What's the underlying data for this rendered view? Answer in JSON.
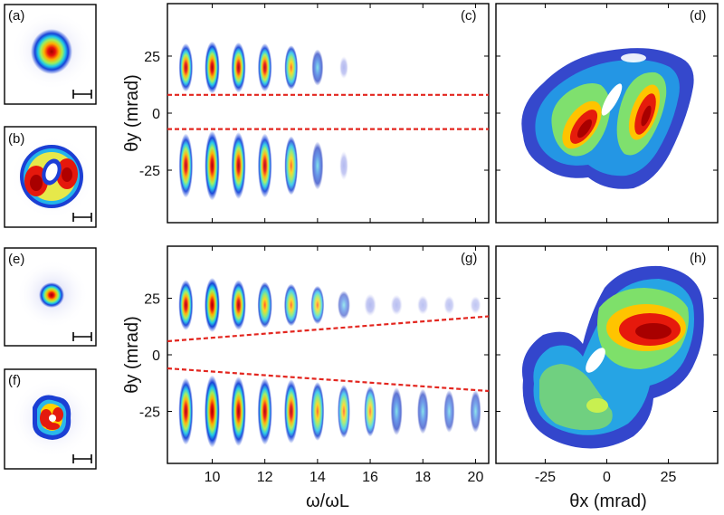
{
  "chart_data": [
    {
      "type": "heatmap",
      "panel": "(a)",
      "title": "",
      "description_values": {
        "intensity_peak": 1.0
      },
      "rings": [
        {
          "radius": 0.75,
          "width": 0.25,
          "peak": 1.0
        }
      ]
    },
    {
      "type": "heatmap",
      "panel": "(b)",
      "title": "",
      "rings": [
        {
          "radius": 0.8,
          "width": 0.3,
          "peak": 1.0
        }
      ]
    },
    {
      "type": "heatmap",
      "panel": "(c)",
      "xlim": [
        8.3,
        20.5
      ],
      "ylim": [
        -48,
        48
      ],
      "yticks": [
        25,
        0,
        -25
      ],
      "ytick_labels": [
        "25",
        "0",
        "-25"
      ],
      "ylabel": "θy (mrad)",
      "harmonics": [
        9,
        10,
        11,
        12,
        13,
        14,
        15
      ],
      "harmonic_intensity": [
        0.85,
        0.95,
        0.9,
        0.85,
        0.75,
        0.55,
        0.2
      ],
      "upper_lobe_center": 20,
      "lower_lobe_center": -23,
      "dashed_lines": [
        {
          "name": "upper",
          "y_start": 8,
          "y_end": 8
        },
        {
          "name": "lower",
          "y_start": -7,
          "y_end": -7
        }
      ]
    },
    {
      "type": "heatmap",
      "panel": "(d)",
      "xlim": [
        -45,
        45
      ],
      "ylim": [
        -48,
        48
      ]
    },
    {
      "type": "heatmap",
      "panel": "(e)",
      "rings": [
        {
          "radius": 0.5,
          "width": 0.2,
          "peak": 1.0
        }
      ]
    },
    {
      "type": "heatmap",
      "panel": "(f)",
      "rings": [
        {
          "radius": 0.55,
          "width": 0.25,
          "peak": 1.0
        }
      ]
    },
    {
      "type": "heatmap",
      "panel": "(g)",
      "xlim": [
        8.3,
        20.5
      ],
      "ylim": [
        -48,
        48
      ],
      "xticks": [
        10,
        12,
        14,
        16,
        18,
        20
      ],
      "xtick_labels": [
        "10",
        "12",
        "14",
        "16",
        "18",
        "20"
      ],
      "yticks": [
        25,
        0,
        -25
      ],
      "ytick_labels": [
        "25",
        "0",
        "-25"
      ],
      "xlabel": "ω/ωL",
      "ylabel": "θy (mrad)",
      "harmonics": [
        9,
        10,
        11,
        12,
        13,
        14,
        15,
        16,
        17,
        18,
        19,
        20
      ],
      "upper_intensity": [
        0.9,
        1.0,
        0.9,
        0.8,
        0.7,
        0.6,
        0.35,
        0.2,
        0.15,
        0.12,
        0.1,
        0.08
      ],
      "lower_intensity": [
        0.9,
        1.0,
        0.95,
        0.9,
        0.85,
        0.75,
        0.65,
        0.6,
        0.55,
        0.5,
        0.45,
        0.45
      ],
      "upper_lobe_center": 22,
      "lower_lobe_center": -25,
      "dashed_lines": [
        {
          "name": "upper",
          "y_start": 6,
          "y_end": 17
        },
        {
          "name": "lower",
          "y_start": -6,
          "y_end": -16
        }
      ]
    },
    {
      "type": "heatmap",
      "panel": "(h)",
      "xlim": [
        -45,
        45
      ],
      "ylim": [
        -48,
        48
      ],
      "xticks": [
        -25,
        0,
        25
      ],
      "xtick_labels": [
        "-25",
        "0",
        "25"
      ],
      "xlabel": "θx (mrad)"
    }
  ]
}
